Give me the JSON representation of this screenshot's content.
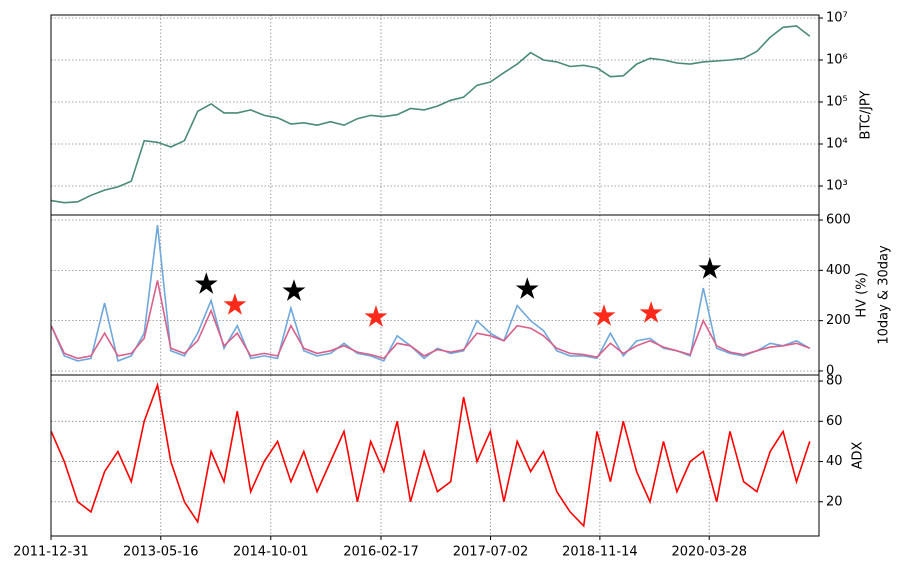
{
  "chart_data": [
    {
      "type": "line",
      "ylabel": "BTC/JPY",
      "ylog": true,
      "grid": true,
      "xlim": [
        "2011-12-31",
        "2021-08-12"
      ],
      "ylim": [
        204,
        11800000
      ],
      "yticks": [
        {
          "value": 1000,
          "label": "10³"
        },
        {
          "value": 10000,
          "label": "10⁴"
        },
        {
          "value": 100000,
          "label": "10⁵"
        },
        {
          "value": 1000000,
          "label": "10⁶"
        },
        {
          "value": 10000000,
          "label": "10⁷"
        }
      ],
      "x": [
        "2012-01-01",
        "2012-03-01",
        "2012-05-01",
        "2012-07-01",
        "2012-09-01",
        "2012-11-01",
        "2013-01-01",
        "2013-03-01",
        "2013-05-01",
        "2013-07-01",
        "2013-09-01",
        "2013-11-01",
        "2014-01-01",
        "2014-03-01",
        "2014-05-01",
        "2014-07-01",
        "2014-09-01",
        "2014-11-01",
        "2015-01-01",
        "2015-03-01",
        "2015-05-01",
        "2015-07-01",
        "2015-09-01",
        "2015-11-01",
        "2016-01-01",
        "2016-03-01",
        "2016-05-01",
        "2016-07-01",
        "2016-09-01",
        "2016-11-01",
        "2017-01-01",
        "2017-03-01",
        "2017-05-01",
        "2017-07-01",
        "2017-09-01",
        "2017-11-01",
        "2018-01-01",
        "2018-03-01",
        "2018-05-01",
        "2018-07-01",
        "2018-09-01",
        "2018-11-01",
        "2019-01-01",
        "2019-03-01",
        "2019-05-01",
        "2019-07-01",
        "2019-09-01",
        "2019-11-01",
        "2020-01-01",
        "2020-03-01",
        "2020-05-01",
        "2020-07-01",
        "2020-09-01",
        "2020-11-01",
        "2021-01-01",
        "2021-03-01",
        "2021-05-01",
        "2021-07-01"
      ],
      "series": [
        {
          "color": "#4a8a7a",
          "values": [
            450,
            400,
            420,
            600,
            800,
            950,
            1300,
            12000,
            11000,
            8500,
            12000,
            60000,
            90000,
            55000,
            55000,
            65000,
            48000,
            42000,
            30000,
            32000,
            28000,
            34000,
            28000,
            40000,
            48000,
            45000,
            50000,
            70000,
            65000,
            80000,
            110000,
            130000,
            250000,
            300000,
            500000,
            800000,
            1500000,
            1000000,
            900000,
            700000,
            750000,
            650000,
            400000,
            420000,
            800000,
            1100000,
            1000000,
            850000,
            800000,
            900000,
            950000,
            1000000,
            1100000,
            1600000,
            3500000,
            6000000,
            6500000,
            3700000
          ]
        }
      ]
    },
    {
      "type": "line",
      "ylabel": [
        "HV (%)",
        "10day & 30day"
      ],
      "grid": true,
      "xlim": [
        "2011-12-31",
        "2021-08-12"
      ],
      "ylim": [
        -16,
        620
      ],
      "yticks": [
        0,
        200,
        400,
        600
      ],
      "x": [
        "2012-01-01",
        "2012-03-01",
        "2012-05-01",
        "2012-07-01",
        "2012-09-01",
        "2012-11-01",
        "2013-01-01",
        "2013-03-01",
        "2013-05-01",
        "2013-07-01",
        "2013-09-01",
        "2013-11-01",
        "2014-01-01",
        "2014-03-01",
        "2014-05-01",
        "2014-07-01",
        "2014-09-01",
        "2014-11-01",
        "2015-01-01",
        "2015-03-01",
        "2015-05-01",
        "2015-07-01",
        "2015-09-01",
        "2015-11-01",
        "2016-01-01",
        "2016-03-01",
        "2016-05-01",
        "2016-07-01",
        "2016-09-01",
        "2016-11-01",
        "2017-01-01",
        "2017-03-01",
        "2017-05-01",
        "2017-07-01",
        "2017-09-01",
        "2017-11-01",
        "2018-01-01",
        "2018-03-01",
        "2018-05-01",
        "2018-07-01",
        "2018-09-01",
        "2018-11-01",
        "2019-01-01",
        "2019-03-01",
        "2019-05-01",
        "2019-07-01",
        "2019-09-01",
        "2019-11-01",
        "2020-01-01",
        "2020-03-01",
        "2020-05-01",
        "2020-07-01",
        "2020-09-01",
        "2020-11-01",
        "2021-01-01",
        "2021-03-01",
        "2021-05-01",
        "2021-07-01"
      ],
      "series": [
        {
          "color": "#6fa8dc",
          "values": [
            180,
            60,
            40,
            50,
            270,
            40,
            60,
            150,
            580,
            80,
            60,
            150,
            280,
            90,
            180,
            50,
            60,
            50,
            250,
            80,
            60,
            70,
            110,
            70,
            60,
            40,
            140,
            100,
            50,
            90,
            70,
            80,
            200,
            150,
            120,
            260,
            200,
            160,
            80,
            60,
            60,
            50,
            150,
            60,
            120,
            130,
            90,
            80,
            60,
            330,
            90,
            70,
            60,
            80,
            110,
            100,
            120,
            90
          ]
        },
        {
          "color": "#d9608a",
          "values": [
            180,
            70,
            50,
            60,
            150,
            60,
            70,
            130,
            360,
            90,
            70,
            120,
            240,
            100,
            150,
            60,
            70,
            60,
            180,
            90,
            70,
            80,
            100,
            75,
            65,
            50,
            110,
            100,
            60,
            85,
            75,
            85,
            150,
            140,
            120,
            180,
            170,
            140,
            90,
            70,
            65,
            55,
            110,
            70,
            100,
            120,
            95,
            80,
            65,
            200,
            100,
            75,
            65,
            80,
            95,
            100,
            110,
            90
          ]
        }
      ],
      "markers": [
        {
          "color": "#000000",
          "x": [
            "2013-12-10",
            "2015-01-15",
            "2017-12-17",
            "2020-03-31"
          ],
          "values": [
            345,
            317,
            325,
            405
          ]
        },
        {
          "color": "#ff2a1a",
          "x": [
            "2014-04-20",
            "2016-01-25",
            "2018-12-03",
            "2019-07-06"
          ],
          "values": [
            262,
            214,
            218,
            230
          ]
        }
      ]
    },
    {
      "type": "line",
      "ylabel": "ADX",
      "grid": true,
      "xlim": [
        "2011-12-31",
        "2021-08-12"
      ],
      "xticks": [
        "2011-12-31",
        "2013-05-16",
        "2014-10-01",
        "2016-02-17",
        "2017-07-02",
        "2018-11-14",
        "2020-03-28"
      ],
      "ylim": [
        3,
        83
      ],
      "yticks": [
        20,
        40,
        60,
        80
      ],
      "x": [
        "2012-01-01",
        "2012-03-01",
        "2012-05-01",
        "2012-07-01",
        "2012-09-01",
        "2012-11-01",
        "2013-01-01",
        "2013-03-01",
        "2013-05-01",
        "2013-07-01",
        "2013-09-01",
        "2013-11-01",
        "2014-01-01",
        "2014-03-01",
        "2014-05-01",
        "2014-07-01",
        "2014-09-01",
        "2014-11-01",
        "2015-01-01",
        "2015-03-01",
        "2015-05-01",
        "2015-07-01",
        "2015-09-01",
        "2015-11-01",
        "2016-01-01",
        "2016-03-01",
        "2016-05-01",
        "2016-07-01",
        "2016-09-01",
        "2016-11-01",
        "2017-01-01",
        "2017-03-01",
        "2017-05-01",
        "2017-07-01",
        "2017-09-01",
        "2017-11-01",
        "2018-01-01",
        "2018-03-01",
        "2018-05-01",
        "2018-07-01",
        "2018-09-01",
        "2018-11-01",
        "2019-01-01",
        "2019-03-01",
        "2019-05-01",
        "2019-07-01",
        "2019-09-01",
        "2019-11-01",
        "2020-01-01",
        "2020-03-01",
        "2020-05-01",
        "2020-07-01",
        "2020-09-01",
        "2020-11-01",
        "2021-01-01",
        "2021-03-01",
        "2021-05-01",
        "2021-07-01"
      ],
      "series": [
        {
          "color": "#ff0000",
          "values": [
            55,
            40,
            20,
            15,
            35,
            45,
            30,
            60,
            78,
            40,
            20,
            10,
            45,
            30,
            65,
            25,
            40,
            50,
            30,
            45,
            25,
            40,
            55,
            20,
            50,
            35,
            60,
            20,
            45,
            25,
            30,
            72,
            40,
            55,
            20,
            50,
            35,
            45,
            25,
            15,
            8,
            55,
            30,
            60,
            35,
            20,
            50,
            25,
            40,
            45,
            20,
            55,
            30,
            25,
            45,
            55,
            30,
            50
          ]
        }
      ]
    }
  ]
}
